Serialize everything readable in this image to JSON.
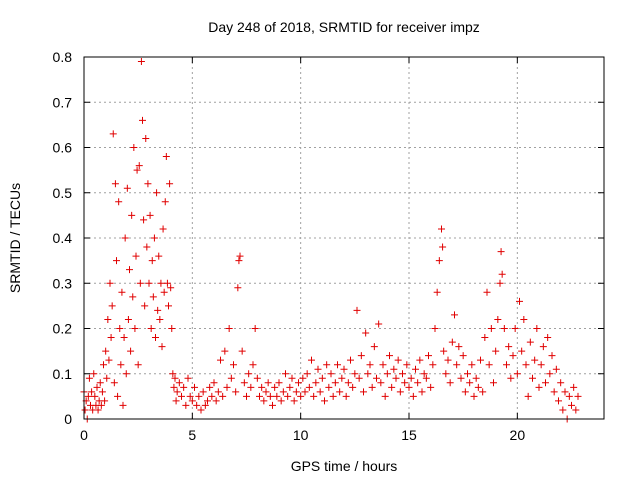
{
  "chart_data": {
    "type": "scatter",
    "title": "Day 248 of 2018, SRMTID for receiver impz",
    "xlabel": "GPS time / hours",
    "ylabel": "SRMTID / TECUs",
    "xlim": [
      0,
      24
    ],
    "ylim": [
      0,
      0.8
    ],
    "xticks": [
      "0",
      "5",
      "10",
      "15",
      "20"
    ],
    "xtick_values": [
      0,
      5,
      10,
      15,
      20
    ],
    "yticks": [
      "0",
      "0.1",
      "0.2",
      "0.3",
      "0.4",
      "0.5",
      "0.6",
      "0.7",
      "0.8"
    ],
    "ytick_values": [
      0,
      0.1,
      0.2,
      0.3,
      0.4,
      0.5,
      0.6,
      0.7,
      0.8
    ],
    "grid": true,
    "marker": "+",
    "marker_color": "#e00000",
    "series": [
      {
        "name": "SRMTID",
        "points": [
          [
            0.0,
            0.06
          ],
          [
            0.05,
            0.02
          ],
          [
            0.1,
            0.04
          ],
          [
            0.15,
            0.0
          ],
          [
            0.2,
            0.05
          ],
          [
            0.25,
            0.09
          ],
          [
            0.3,
            0.03
          ],
          [
            0.35,
            0.06
          ],
          [
            0.4,
            0.02
          ],
          [
            0.45,
            0.1
          ],
          [
            0.5,
            0.05
          ],
          [
            0.55,
            0.03
          ],
          [
            0.6,
            0.07
          ],
          [
            0.65,
            0.02
          ],
          [
            0.7,
            0.04
          ],
          [
            0.75,
            0.08
          ],
          [
            0.8,
            0.03
          ],
          [
            0.85,
            0.06
          ],
          [
            0.9,
            0.12
          ],
          [
            0.95,
            0.04
          ],
          [
            1.0,
            0.15
          ],
          [
            1.05,
            0.09
          ],
          [
            1.1,
            0.22
          ],
          [
            1.15,
            0.13
          ],
          [
            1.2,
            0.3
          ],
          [
            1.25,
            0.18
          ],
          [
            1.3,
            0.25
          ],
          [
            1.35,
            0.63
          ],
          [
            1.4,
            0.08
          ],
          [
            1.45,
            0.52
          ],
          [
            1.5,
            0.35
          ],
          [
            1.55,
            0.05
          ],
          [
            1.6,
            0.48
          ],
          [
            1.65,
            0.2
          ],
          [
            1.7,
            0.12
          ],
          [
            1.75,
            0.28
          ],
          [
            1.8,
            0.03
          ],
          [
            1.85,
            0.18
          ],
          [
            1.9,
            0.4
          ],
          [
            1.95,
            0.1
          ],
          [
            2.0,
            0.51
          ],
          [
            2.05,
            0.22
          ],
          [
            2.1,
            0.33
          ],
          [
            2.15,
            0.15
          ],
          [
            2.2,
            0.45
          ],
          [
            2.25,
            0.27
          ],
          [
            2.3,
            0.6
          ],
          [
            2.35,
            0.2
          ],
          [
            2.4,
            0.36
          ],
          [
            2.45,
            0.55
          ],
          [
            2.5,
            0.12
          ],
          [
            2.55,
            0.56
          ],
          [
            2.6,
            0.3
          ],
          [
            2.65,
            0.79
          ],
          [
            2.7,
            0.66
          ],
          [
            2.75,
            0.44
          ],
          [
            2.8,
            0.25
          ],
          [
            2.85,
            0.62
          ],
          [
            2.9,
            0.38
          ],
          [
            2.95,
            0.52
          ],
          [
            3.0,
            0.3
          ],
          [
            3.05,
            0.45
          ],
          [
            3.1,
            0.2
          ],
          [
            3.15,
            0.35
          ],
          [
            3.2,
            0.27
          ],
          [
            3.25,
            0.4
          ],
          [
            3.3,
            0.18
          ],
          [
            3.35,
            0.5
          ],
          [
            3.4,
            0.24
          ],
          [
            3.45,
            0.36
          ],
          [
            3.5,
            0.22
          ],
          [
            3.55,
            0.3
          ],
          [
            3.6,
            0.16
          ],
          [
            3.65,
            0.42
          ],
          [
            3.7,
            0.28
          ],
          [
            3.75,
            0.48
          ],
          [
            3.8,
            0.58
          ],
          [
            3.85,
            0.3
          ],
          [
            3.9,
            0.25
          ],
          [
            3.95,
            0.52
          ],
          [
            4.0,
            0.29
          ],
          [
            4.05,
            0.2
          ],
          [
            4.1,
            0.1
          ],
          [
            4.15,
            0.07
          ],
          [
            4.2,
            0.09
          ],
          [
            4.25,
            0.04
          ],
          [
            4.3,
            0.06
          ],
          [
            4.4,
            0.08
          ],
          [
            4.5,
            0.05
          ],
          [
            4.6,
            0.07
          ],
          [
            4.7,
            0.03
          ],
          [
            4.8,
            0.09
          ],
          [
            4.9,
            0.05
          ],
          [
            5.0,
            0.04
          ],
          [
            5.1,
            0.07
          ],
          [
            5.2,
            0.03
          ],
          [
            5.3,
            0.05
          ],
          [
            5.4,
            0.02
          ],
          [
            5.5,
            0.06
          ],
          [
            5.6,
            0.03
          ],
          [
            5.7,
            0.04
          ],
          [
            5.8,
            0.07
          ],
          [
            5.9,
            0.05
          ],
          [
            6.0,
            0.08
          ],
          [
            6.1,
            0.04
          ],
          [
            6.2,
            0.06
          ],
          [
            6.3,
            0.13
          ],
          [
            6.4,
            0.05
          ],
          [
            6.5,
            0.15
          ],
          [
            6.6,
            0.07
          ],
          [
            6.7,
            0.2
          ],
          [
            6.8,
            0.09
          ],
          [
            6.9,
            0.12
          ],
          [
            7.0,
            0.06
          ],
          [
            7.1,
            0.29
          ],
          [
            7.15,
            0.35
          ],
          [
            7.2,
            0.36
          ],
          [
            7.3,
            0.15
          ],
          [
            7.4,
            0.08
          ],
          [
            7.5,
            0.05
          ],
          [
            7.6,
            0.1
          ],
          [
            7.7,
            0.07
          ],
          [
            7.8,
            0.12
          ],
          [
            7.9,
            0.2
          ],
          [
            8.0,
            0.09
          ],
          [
            8.1,
            0.05
          ],
          [
            8.2,
            0.07
          ],
          [
            8.3,
            0.04
          ],
          [
            8.4,
            0.06
          ],
          [
            8.5,
            0.08
          ],
          [
            8.6,
            0.05
          ],
          [
            8.7,
            0.03
          ],
          [
            8.8,
            0.07
          ],
          [
            8.9,
            0.05
          ],
          [
            9.0,
            0.08
          ],
          [
            9.1,
            0.04
          ],
          [
            9.2,
            0.06
          ],
          [
            9.3,
            0.1
          ],
          [
            9.4,
            0.05
          ],
          [
            9.5,
            0.07
          ],
          [
            9.6,
            0.09
          ],
          [
            9.7,
            0.04
          ],
          [
            9.8,
            0.06
          ],
          [
            9.9,
            0.08
          ],
          [
            10.0,
            0.05
          ],
          [
            10.1,
            0.09
          ],
          [
            10.2,
            0.06
          ],
          [
            10.3,
            0.1
          ],
          [
            10.4,
            0.07
          ],
          [
            10.5,
            0.13
          ],
          [
            10.6,
            0.05
          ],
          [
            10.7,
            0.08
          ],
          [
            10.8,
            0.11
          ],
          [
            10.9,
            0.06
          ],
          [
            11.0,
            0.09
          ],
          [
            11.1,
            0.04
          ],
          [
            11.2,
            0.12
          ],
          [
            11.3,
            0.07
          ],
          [
            11.4,
            0.1
          ],
          [
            11.5,
            0.05
          ],
          [
            11.6,
            0.08
          ],
          [
            11.7,
            0.12
          ],
          [
            11.8,
            0.06
          ],
          [
            11.9,
            0.09
          ],
          [
            12.0,
            0.11
          ],
          [
            12.1,
            0.05
          ],
          [
            12.2,
            0.08
          ],
          [
            12.3,
            0.13
          ],
          [
            12.4,
            0.07
          ],
          [
            12.5,
            0.1
          ],
          [
            12.6,
            0.24
          ],
          [
            12.7,
            0.09
          ],
          [
            12.8,
            0.14
          ],
          [
            12.9,
            0.06
          ],
          [
            13.0,
            0.19
          ],
          [
            13.1,
            0.1
          ],
          [
            13.2,
            0.12
          ],
          [
            13.3,
            0.07
          ],
          [
            13.4,
            0.16
          ],
          [
            13.5,
            0.09
          ],
          [
            13.6,
            0.21
          ],
          [
            13.7,
            0.08
          ],
          [
            13.8,
            0.12
          ],
          [
            13.9,
            0.05
          ],
          [
            14.0,
            0.1
          ],
          [
            14.1,
            0.14
          ],
          [
            14.2,
            0.07
          ],
          [
            14.3,
            0.11
          ],
          [
            14.4,
            0.09
          ],
          [
            14.5,
            0.13
          ],
          [
            14.6,
            0.06
          ],
          [
            14.7,
            0.1
          ],
          [
            14.8,
            0.08
          ],
          [
            14.9,
            0.12
          ],
          [
            15.0,
            0.07
          ],
          [
            15.1,
            0.09
          ],
          [
            15.2,
            0.05
          ],
          [
            15.3,
            0.11
          ],
          [
            15.4,
            0.08
          ],
          [
            15.5,
            0.13
          ],
          [
            15.6,
            0.06
          ],
          [
            15.7,
            0.1
          ],
          [
            15.8,
            0.09
          ],
          [
            15.9,
            0.14
          ],
          [
            16.0,
            0.07
          ],
          [
            16.1,
            0.12
          ],
          [
            16.2,
            0.2
          ],
          [
            16.3,
            0.28
          ],
          [
            16.4,
            0.35
          ],
          [
            16.5,
            0.42
          ],
          [
            16.55,
            0.38
          ],
          [
            16.6,
            0.15
          ],
          [
            16.7,
            0.1
          ],
          [
            16.8,
            0.13
          ],
          [
            16.9,
            0.08
          ],
          [
            17.0,
            0.17
          ],
          [
            17.1,
            0.23
          ],
          [
            17.2,
            0.12
          ],
          [
            17.3,
            0.16
          ],
          [
            17.4,
            0.09
          ],
          [
            17.5,
            0.14
          ],
          [
            17.6,
            0.06
          ],
          [
            17.7,
            0.1
          ],
          [
            17.8,
            0.08
          ],
          [
            17.9,
            0.12
          ],
          [
            18.0,
            0.05
          ],
          [
            18.1,
            0.09
          ],
          [
            18.2,
            0.07
          ],
          [
            18.3,
            0.13
          ],
          [
            18.4,
            0.06
          ],
          [
            18.5,
            0.18
          ],
          [
            18.6,
            0.28
          ],
          [
            18.7,
            0.12
          ],
          [
            18.8,
            0.2
          ],
          [
            18.9,
            0.08
          ],
          [
            19.0,
            0.15
          ],
          [
            19.1,
            0.22
          ],
          [
            19.2,
            0.3
          ],
          [
            19.25,
            0.37
          ],
          [
            19.3,
            0.32
          ],
          [
            19.4,
            0.2
          ],
          [
            19.5,
            0.12
          ],
          [
            19.6,
            0.16
          ],
          [
            19.7,
            0.09
          ],
          [
            19.8,
            0.14
          ],
          [
            19.9,
            0.2
          ],
          [
            20.0,
            0.1
          ],
          [
            20.1,
            0.26
          ],
          [
            20.2,
            0.15
          ],
          [
            20.3,
            0.22
          ],
          [
            20.4,
            0.12
          ],
          [
            20.5,
            0.05
          ],
          [
            20.6,
            0.17
          ],
          [
            20.7,
            0.09
          ],
          [
            20.8,
            0.13
          ],
          [
            20.9,
            0.2
          ],
          [
            21.0,
            0.07
          ],
          [
            21.1,
            0.12
          ],
          [
            21.2,
            0.16
          ],
          [
            21.3,
            0.08
          ],
          [
            21.4,
            0.18
          ],
          [
            21.5,
            0.1
          ],
          [
            21.6,
            0.14
          ],
          [
            21.7,
            0.06
          ],
          [
            21.8,
            0.11
          ],
          [
            21.9,
            0.04
          ],
          [
            22.0,
            0.08
          ],
          [
            22.1,
            0.02
          ],
          [
            22.2,
            0.06
          ],
          [
            22.3,
            0.0
          ],
          [
            22.4,
            0.05
          ],
          [
            22.5,
            0.03
          ],
          [
            22.6,
            0.07
          ],
          [
            22.7,
            0.02
          ],
          [
            22.8,
            0.05
          ]
        ]
      }
    ]
  }
}
